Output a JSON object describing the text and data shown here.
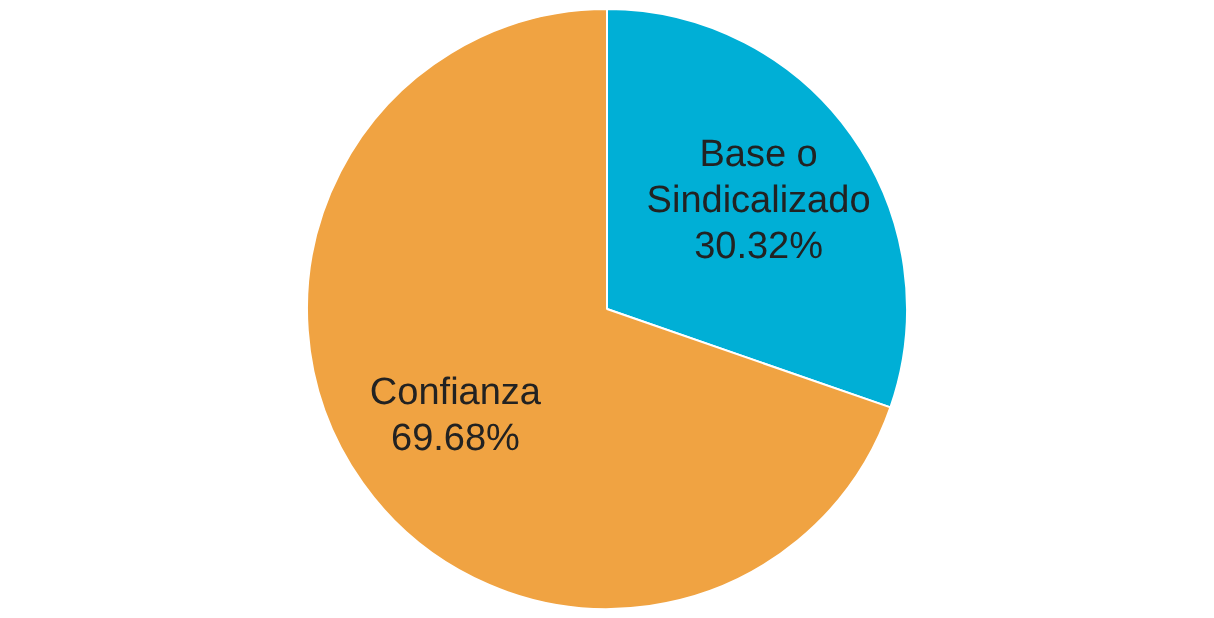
{
  "chart_data": {
    "type": "pie",
    "categories": [
      "Base o Sindicalizado",
      "Confianza"
    ],
    "values": [
      30.32,
      69.68
    ],
    "value_labels": [
      "30.32%",
      "69.68%"
    ],
    "colors": [
      "#00afd6",
      "#f0a342"
    ],
    "legend": false
  }
}
